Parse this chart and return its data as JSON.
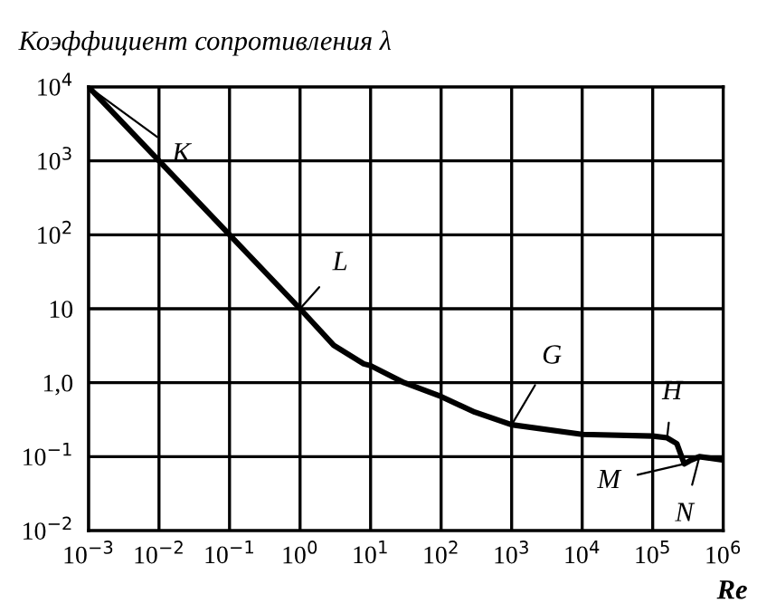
{
  "chart_data": {
    "type": "line",
    "ylabel": "Коэффициент сопротивления λ",
    "xlabel": "Re",
    "log": "xy",
    "grid": true,
    "marker": "none",
    "line_style": "solid",
    "x": [
      0.001,
      0.01,
      0.1,
      1,
      3,
      8,
      10,
      30,
      100,
      300,
      1000,
      10000,
      100000,
      160000,
      220000,
      280000,
      350000,
      460000,
      1000000
    ],
    "series": [
      {
        "color": "#000000",
        "values": [
          10000,
          1000,
          100,
          10,
          3.2,
          1.8,
          1.7,
          1.0,
          0.65,
          0.4,
          0.27,
          0.2,
          0.19,
          0.18,
          0.15,
          0.08,
          0.09,
          0.1,
          0.09
        ]
      }
    ],
    "xlim": [
      0.001,
      1000000
    ],
    "ylim": [
      0.01,
      10000
    ],
    "xticks": [
      {
        "value": 0.001,
        "label": "10$^{−3}$"
      },
      {
        "value": 0.01,
        "label": "10$^{−2}$"
      },
      {
        "value": 0.1,
        "label": "10$^{−1}$"
      },
      {
        "value": 1,
        "label": "10$^{0}$"
      },
      {
        "value": 10,
        "label": "10$^{1}$"
      },
      {
        "value": 100,
        "label": "10$^{2}$"
      },
      {
        "value": 1000,
        "label": "10$^{3}$"
      },
      {
        "value": 10000,
        "label": "10$^{4}$"
      },
      {
        "value": 100000,
        "label": "10$^{5}$"
      },
      {
        "value": 1000000,
        "label": "10$^{6}$"
      }
    ],
    "yticks": [
      {
        "value": 0.01,
        "label": "10$^{−2}$"
      },
      {
        "value": 0.1,
        "label": "10$^{−1}$"
      },
      {
        "value": 1,
        "label": "1,0"
      },
      10,
      {
        "value": 100,
        "label": "10$^{2}$"
      },
      {
        "value": 1000,
        "label": "10$^{3}$"
      },
      {
        "value": 10000,
        "label": "10$^{4}$"
      }
    ],
    "annotations": [
      {
        "text": "K",
        "x": 0.001,
        "y": 10000
      },
      {
        "text": "L",
        "x": 1,
        "y": 10
      },
      {
        "text": "G",
        "x": 1000,
        "y": 0.27
      },
      {
        "text": "H",
        "x": 160000,
        "y": 0.18
      },
      {
        "text": "M",
        "x": 280000,
        "y": 0.08
      },
      {
        "text": "N",
        "x": 460000,
        "y": 0.1
      }
    ]
  }
}
